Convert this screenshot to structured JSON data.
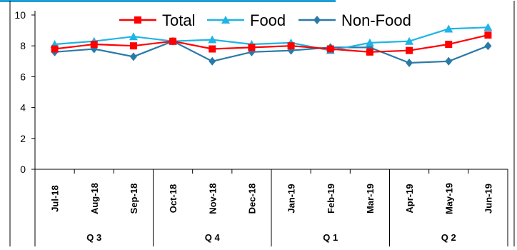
{
  "chart_data": {
    "type": "line",
    "title": "",
    "xlabel": "",
    "ylabel": "",
    "ylim": [
      0,
      10
    ],
    "yticks": [
      0,
      2,
      4,
      6,
      8,
      10
    ],
    "grid": false,
    "legend_position": "top",
    "categories": [
      "Jul-18",
      "Aug-18",
      "Sep-18",
      "Oct-18",
      "Nov-18",
      "Dec-18",
      "Jan-19",
      "Feb-19",
      "Mar-19",
      "Apr-19",
      "May-19",
      "Jun-19"
    ],
    "groups": [
      {
        "label": "Q 3",
        "start": 0,
        "end": 2
      },
      {
        "label": "Q 4",
        "start": 3,
        "end": 5
      },
      {
        "label": "Q 1",
        "start": 6,
        "end": 8
      },
      {
        "label": "Q 2",
        "start": 9,
        "end": 11
      }
    ],
    "series": [
      {
        "name": "Total",
        "color": "#ff0000",
        "marker": "square",
        "values": [
          7.8,
          8.1,
          8.0,
          8.3,
          7.8,
          7.9,
          8.0,
          7.8,
          7.6,
          7.7,
          8.1,
          8.7
        ]
      },
      {
        "name": "Food",
        "color": "#1fb4e6",
        "marker": "triangle",
        "values": [
          8.1,
          8.3,
          8.6,
          8.3,
          8.4,
          8.1,
          8.2,
          7.7,
          8.2,
          8.3,
          9.1,
          9.2
        ]
      },
      {
        "name": "Non-Food",
        "color": "#2a7aa8",
        "marker": "diamond",
        "values": [
          7.6,
          7.8,
          7.3,
          8.3,
          7.0,
          7.6,
          7.7,
          7.9,
          7.9,
          6.9,
          7.0,
          8.0
        ]
      }
    ]
  },
  "header_fragment": {
    "color": "#1d9fd8"
  }
}
